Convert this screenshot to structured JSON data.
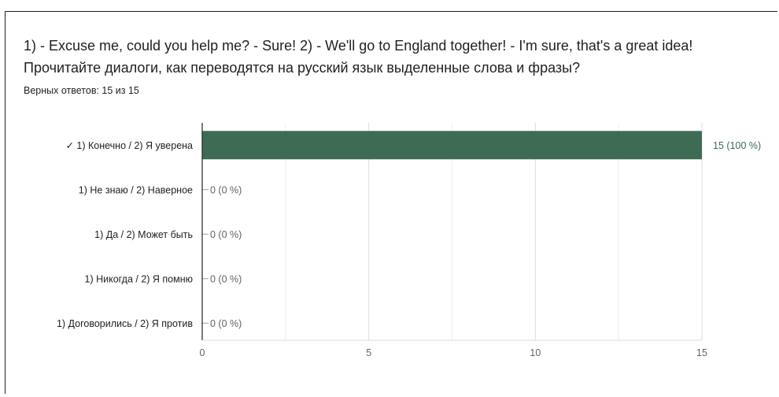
{
  "question": {
    "text": "1) - Excuse me, could you help me?    - Sure! 2) - We'll go to England together!    - I'm sure, that's a great idea!   Прочитайте диалоги, как переводятся на русский язык выделенные слова и фразы?",
    "score": "Верных ответов: 15 из 15"
  },
  "chart_data": {
    "type": "bar",
    "orientation": "horizontal",
    "categories": [
      "✓ 1) Конечно / 2) Я уверена",
      "1) Не знаю / 2) Наверное",
      "1) Да / 2) Может быть",
      "1) Никогда / 2) Я помню",
      "1) Договорились / 2) Я против"
    ],
    "values": [
      15,
      0,
      0,
      0,
      0
    ],
    "data_labels": [
      "15 (100 %)",
      "0 (0 %)",
      "0 (0 %)",
      "0 (0 %)",
      "0 (0 %)"
    ],
    "xlim": [
      0,
      15
    ],
    "xticks": [
      0,
      5,
      10,
      15
    ],
    "grid": true,
    "bar_color": "#3e6b54",
    "title": "",
    "xlabel": "",
    "ylabel": ""
  }
}
